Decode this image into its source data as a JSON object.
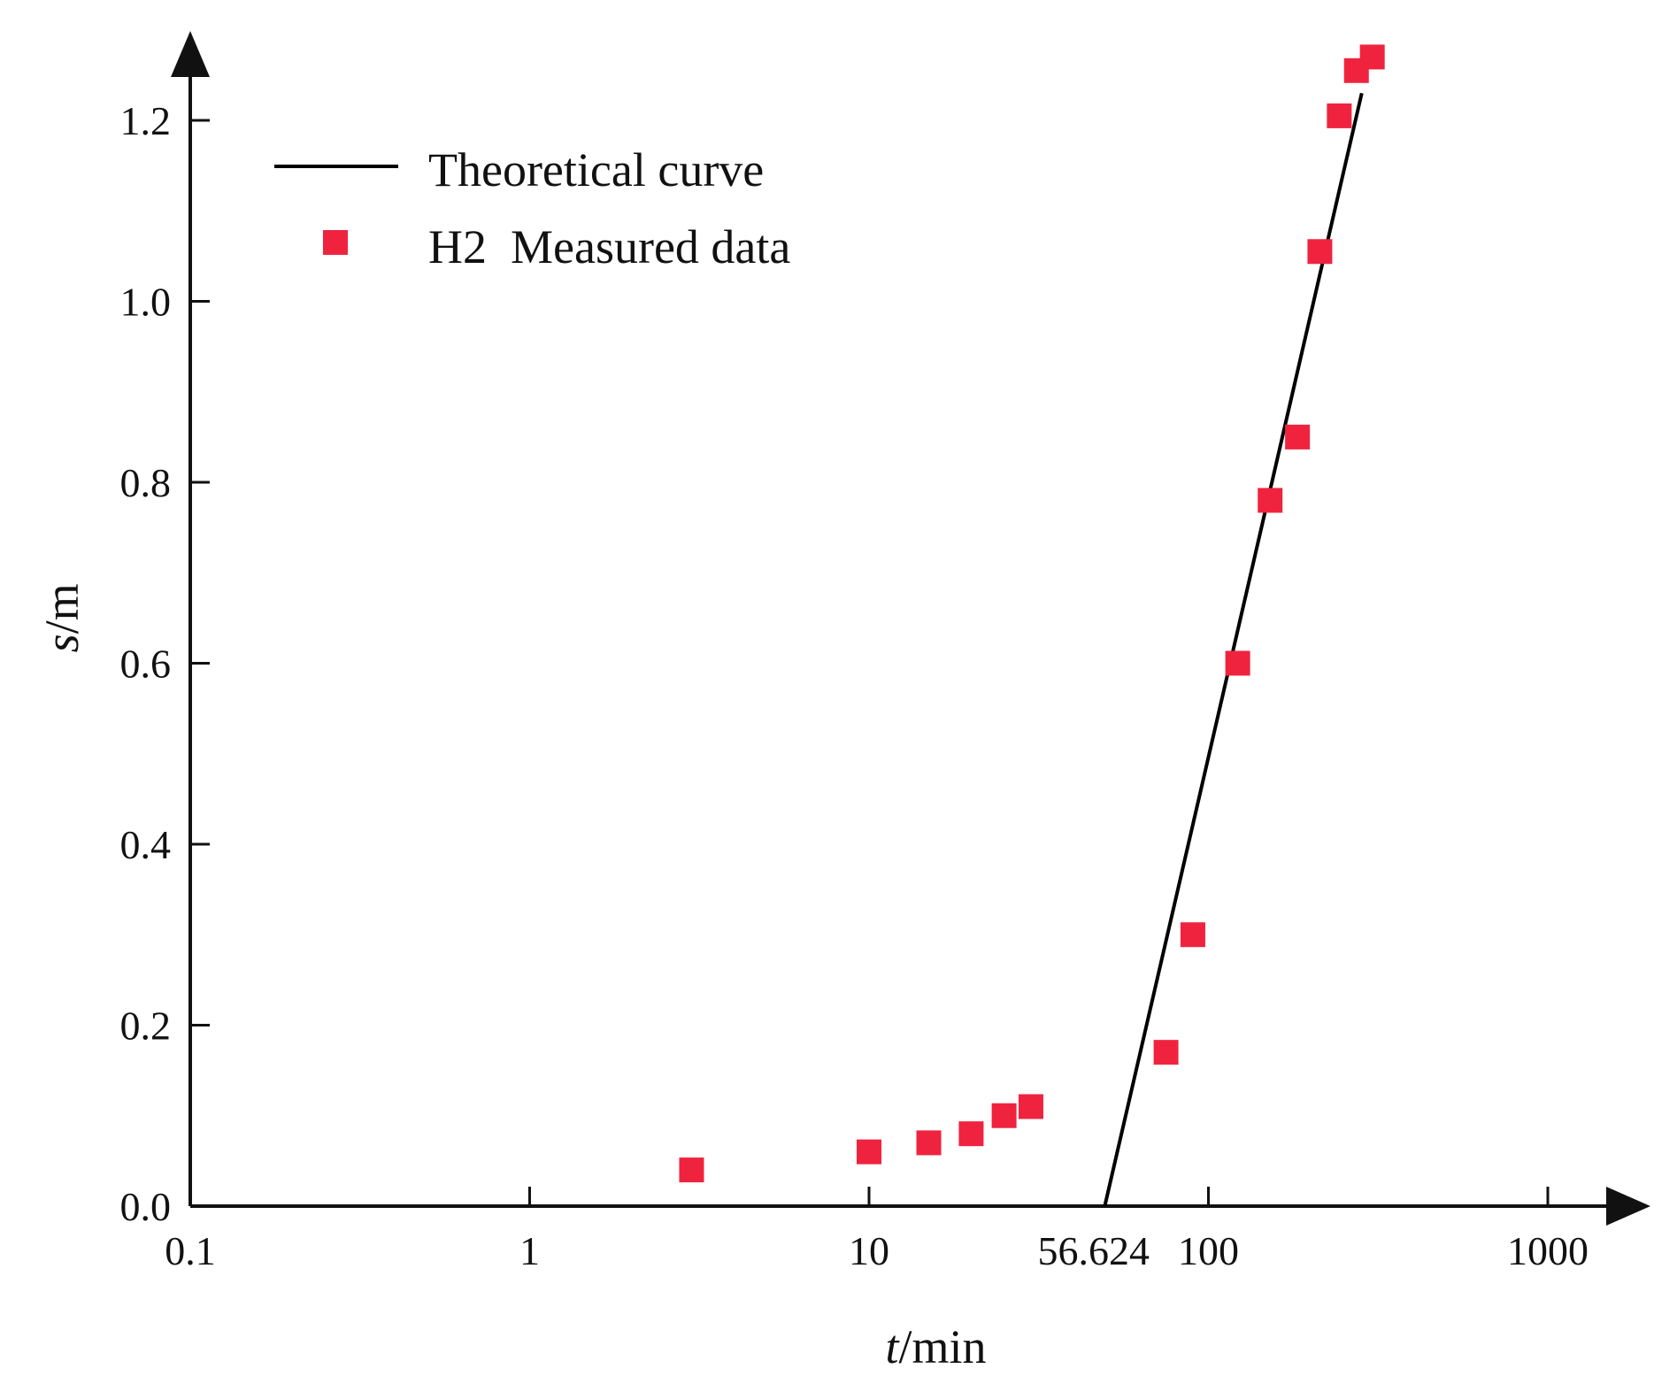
{
  "chart_data": {
    "type": "scatter",
    "x_scale": "log",
    "xlabel": {
      "var": "t",
      "unit": "/min"
    },
    "ylabel": {
      "var": "s",
      "unit": "/m"
    },
    "xlim": [
      0.1,
      2000
    ],
    "ylim": [
      0,
      1.3
    ],
    "x_ticks": [
      {
        "value": 0.1,
        "label": "0.1"
      },
      {
        "value": 1,
        "label": "1"
      },
      {
        "value": 10,
        "label": "10"
      },
      {
        "value": 100,
        "label": "100"
      },
      {
        "value": 1000,
        "label": "1000"
      }
    ],
    "y_ticks": [
      {
        "value": 0.0,
        "label": "0.0"
      },
      {
        "value": 0.2,
        "label": "0.2"
      },
      {
        "value": 0.4,
        "label": "0.4"
      },
      {
        "value": 0.6,
        "label": "0.6"
      },
      {
        "value": 0.8,
        "label": "0.8"
      },
      {
        "value": 1.0,
        "label": "1.0"
      },
      {
        "value": 1.2,
        "label": "1.2"
      }
    ],
    "annotation": {
      "label": "56.624",
      "x": 56.624
    },
    "series": [
      {
        "name": "Theoretical curve",
        "kind": "line",
        "color": "#000000",
        "x": [
          49.5,
          283
        ],
        "y": [
          0.0,
          1.23
        ]
      },
      {
        "name": "H2  Measured data",
        "kind": "marker",
        "marker": "square",
        "color": "#f0233f",
        "x": [
          3,
          10,
          15,
          20,
          25,
          30,
          75,
          90,
          122,
          152,
          183,
          213,
          243,
          273,
          304
        ],
        "y": [
          0.04,
          0.06,
          0.07,
          0.08,
          0.1,
          0.11,
          0.17,
          0.3,
          0.6,
          0.78,
          0.85,
          1.055,
          1.205,
          1.255,
          1.27
        ]
      }
    ],
    "legend": {
      "position": "top-left",
      "entries": [
        {
          "label": "Theoretical curve",
          "symbol": "line"
        },
        {
          "label": "H2  Measured data",
          "symbol": "square"
        }
      ]
    }
  }
}
